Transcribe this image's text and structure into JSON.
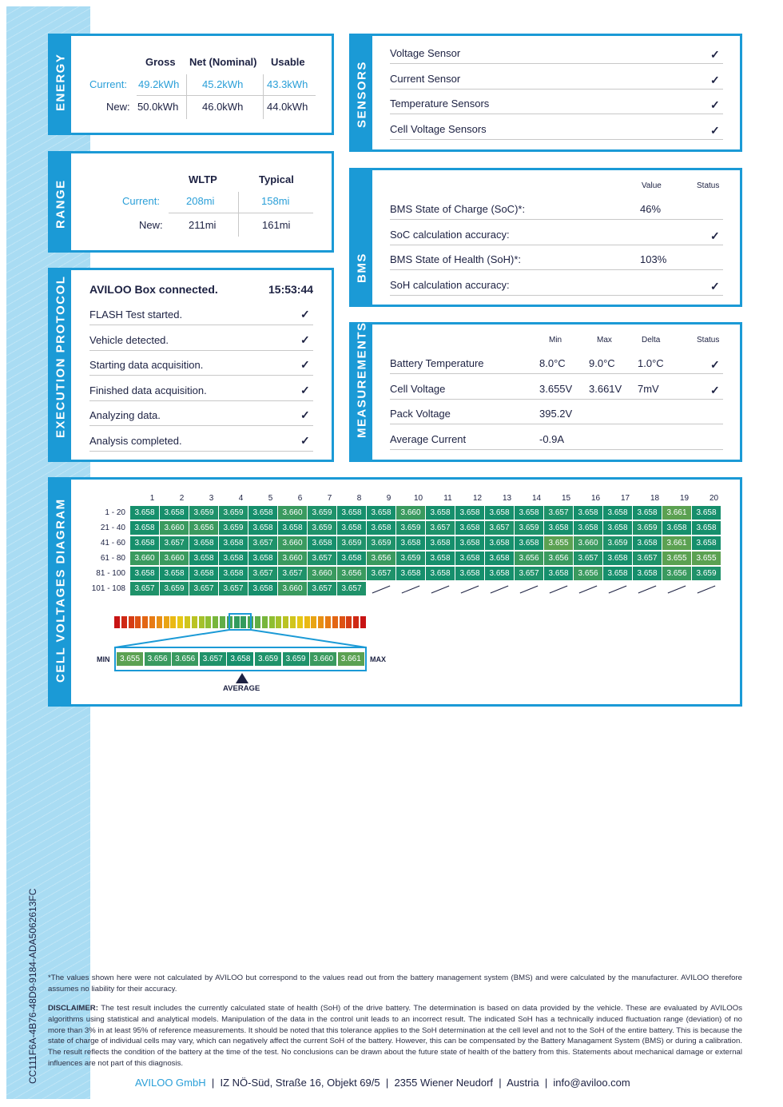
{
  "doc_id": "CC111F6A-4B76-48D9-9184-ADA5062613FC",
  "energy": {
    "title": "ENERGY",
    "cols": [
      "Gross",
      "Net (Nominal)",
      "Usable"
    ],
    "current_label": "Current:",
    "new_label": "New:",
    "current": [
      "49.2kWh",
      "45.2kWh",
      "43.3kWh"
    ],
    "new": [
      "50.0kWh",
      "46.0kWh",
      "44.0kWh"
    ]
  },
  "range": {
    "title": "RANGE",
    "cols": [
      "WLTP",
      "Typical"
    ],
    "current_label": "Current:",
    "new_label": "New:",
    "current": [
      "208mi",
      "158mi"
    ],
    "new": [
      "211mi",
      "161mi"
    ]
  },
  "execution": {
    "title": "EXECUTION PROTOCOL",
    "header": "AVILOO Box connected.",
    "time": "15:53:44",
    "steps": [
      "FLASH Test started.",
      "Vehicle detected.",
      "Starting data acquisition.",
      "Finished data acquisition.",
      "Analyzing data.",
      "Analysis completed."
    ]
  },
  "sensors": {
    "title": "SENSORS",
    "items": [
      "Voltage Sensor",
      "Current Sensor",
      "Temperature Sensors",
      "Cell Voltage Sensors"
    ]
  },
  "bms": {
    "title": "BMS",
    "col_value": "Value",
    "col_status": "Status",
    "rows": [
      {
        "label": "BMS State of Charge (SoC)*:",
        "value": "46%",
        "check": false
      },
      {
        "label": "SoC calculation accuracy:",
        "value": "",
        "check": true
      },
      {
        "label": "BMS State of Health (SoH)*:",
        "value": "103%",
        "check": false
      },
      {
        "label": "SoH calculation accuracy:",
        "value": "",
        "check": true
      }
    ]
  },
  "measurements": {
    "title": "MEASUREMENTS",
    "cols": [
      "Min",
      "Max",
      "Delta",
      "Status"
    ],
    "rows": [
      {
        "label": "Battery Temperature",
        "min": "8.0°C",
        "max": "9.0°C",
        "delta": "1.0°C",
        "check": true
      },
      {
        "label": "Cell Voltage",
        "min": "3.655V",
        "max": "3.661V",
        "delta": "7mV",
        "check": true
      },
      {
        "label": "Pack Voltage",
        "min": "395.2V",
        "max": "",
        "delta": "",
        "check": false
      },
      {
        "label": "Average Current",
        "min": "-0.9A",
        "max": "",
        "delta": "",
        "check": false
      }
    ]
  },
  "cells": {
    "title": "CELL VOLTAGES DIAGRAM",
    "columns": [
      "1",
      "2",
      "3",
      "4",
      "5",
      "6",
      "7",
      "8",
      "9",
      "10",
      "11",
      "12",
      "13",
      "14",
      "15",
      "16",
      "17",
      "18",
      "19",
      "20"
    ],
    "rows": [
      {
        "label": "1 - 20",
        "values": [
          "3.658",
          "3.658",
          "3.659",
          "3.659",
          "3.658",
          "3.660",
          "3.659",
          "3.658",
          "3.658",
          "3.660",
          "3.658",
          "3.658",
          "3.658",
          "3.658",
          "3.657",
          "3.658",
          "3.658",
          "3.658",
          "3.661",
          "3.658"
        ]
      },
      {
        "label": "21 - 40",
        "values": [
          "3.658",
          "3.660",
          "3.656",
          "3.659",
          "3.658",
          "3.658",
          "3.659",
          "3.658",
          "3.658",
          "3.659",
          "3.657",
          "3.658",
          "3.657",
          "3.659",
          "3.658",
          "3.658",
          "3.658",
          "3.659",
          "3.658",
          "3.658"
        ]
      },
      {
        "label": "41 - 60",
        "values": [
          "3.658",
          "3.657",
          "3.658",
          "3.658",
          "3.657",
          "3.660",
          "3.658",
          "3.659",
          "3.659",
          "3.658",
          "3.658",
          "3.658",
          "3.658",
          "3.658",
          "3.655",
          "3.660",
          "3.659",
          "3.658",
          "3.661",
          "3.658"
        ]
      },
      {
        "label": "61 - 80",
        "values": [
          "3.660",
          "3.660",
          "3.658",
          "3.658",
          "3.658",
          "3.660",
          "3.657",
          "3.658",
          "3.656",
          "3.659",
          "3.658",
          "3.658",
          "3.658",
          "3.656",
          "3.656",
          "3.657",
          "3.658",
          "3.657",
          "3.655",
          "3.655"
        ]
      },
      {
        "label": "81 - 100",
        "values": [
          "3.658",
          "3.658",
          "3.658",
          "3.658",
          "3.657",
          "3.657",
          "3.660",
          "3.656",
          "3.657",
          "3.658",
          "3.658",
          "3.658",
          "3.658",
          "3.657",
          "3.658",
          "3.656",
          "3.658",
          "3.658",
          "3.656",
          "3.659"
        ]
      },
      {
        "label": "101 - 108",
        "values": [
          "3.657",
          "3.659",
          "3.657",
          "3.657",
          "3.658",
          "3.660",
          "3.657",
          "3.657"
        ]
      }
    ],
    "scale": [
      "3.655",
      "3.656",
      "3.656",
      "3.657",
      "3.658",
      "3.659",
      "3.659",
      "3.660",
      "3.661"
    ],
    "min_label": "MIN",
    "max_label": "MAX",
    "average_label": "AVERAGE"
  },
  "footnote": "*The values shown here were not calculated by AVILOO but correspond to the values read out from the battery management system (BMS) and were calculated by the manufacturer. AVILOO therefore assumes no liability for their accuracy.",
  "disclaimer_label": "DISCLAIMER:",
  "disclaimer": " The test result includes the currently calculated state of health (SoH) of the drive battery. The determination is based on data provided by the vehicle. These are evaluated by AVILOOs algorithms using statistical and analytical models. Manipulation of the data in the control unit leads to an incorrect result. The indicated SoH has a technically induced fluctuation range (deviation) of no more than 3% in at least 95% of reference measurements. It should be noted that this tolerance applies to the SoH determination at the cell level and not to the SoH of the entire battery. This is because the state of charge of individual cells may vary, which can negatively affect the current SoH of the battery. However, this can be compensated by the Battery Managament System (BMS) or during a calibration. The result reflects the condition of the battery at the time of the test. No conclusions can be drawn about the future state of health of the battery from this. Statements about mechanical damage or external influences are not part of this diagnosis.",
  "address": {
    "company": "AVILOO GmbH",
    "parts": [
      "IZ NÖ-Süd, Straße 16, Objekt 69/5",
      "2355 Wiener Neudorf",
      "Austria",
      "info@aviloo.com"
    ]
  },
  "colors": {
    "frame": "#1b9ad6",
    "accent": "#2a9fd8",
    "sidebar": "#a9dcf3",
    "cell_avg": "#168f6c"
  }
}
